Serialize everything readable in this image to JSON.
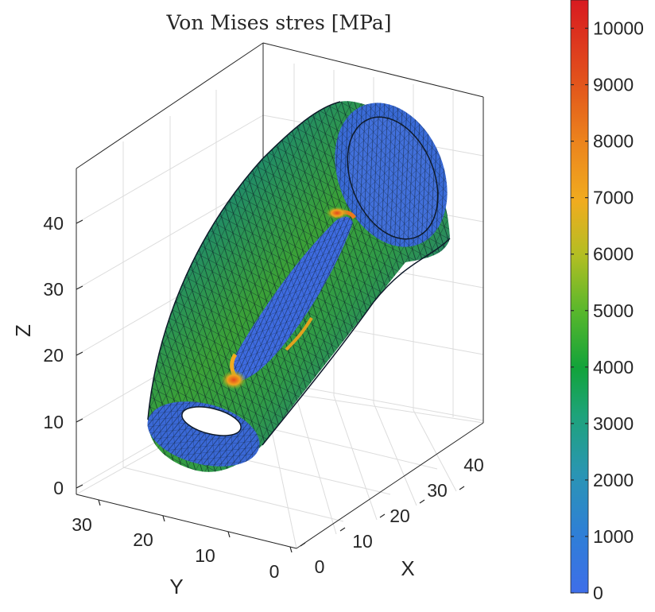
{
  "chart_data": {
    "type": "3d-surface",
    "title": "Von Mises stres [MPa]",
    "xlabel": "X",
    "ylabel": "Y",
    "zlabel": "Z",
    "x_ticks": [
      0,
      10,
      20,
      30,
      40
    ],
    "y_ticks": [
      0,
      10,
      20,
      30
    ],
    "z_ticks": [
      0,
      10,
      20,
      30,
      40
    ],
    "xlim": [
      0,
      48
    ],
    "ylim": [
      0,
      34
    ],
    "zlim": [
      0,
      48
    ],
    "grid": true,
    "colorbar": {
      "ticks": [
        0,
        1000,
        2000,
        3000,
        4000,
        5000,
        6000,
        7000,
        8000,
        9000,
        10000
      ],
      "min": 0,
      "max": 10500,
      "colormap": [
        "#3e6ee9",
        "#2f8dc4",
        "#20a488",
        "#14a43c",
        "#6fbd2a",
        "#c8bb1f",
        "#f4a91f",
        "#ec7a1d",
        "#df4a1c",
        "#d91a1f"
      ]
    },
    "surface": {
      "description": "meshed tube with slot, colored by stress",
      "low_color": "#3a6ce4",
      "mid_color": "#22953e",
      "high_color": "#e8a21a",
      "peak_color": "#d9251d"
    }
  }
}
